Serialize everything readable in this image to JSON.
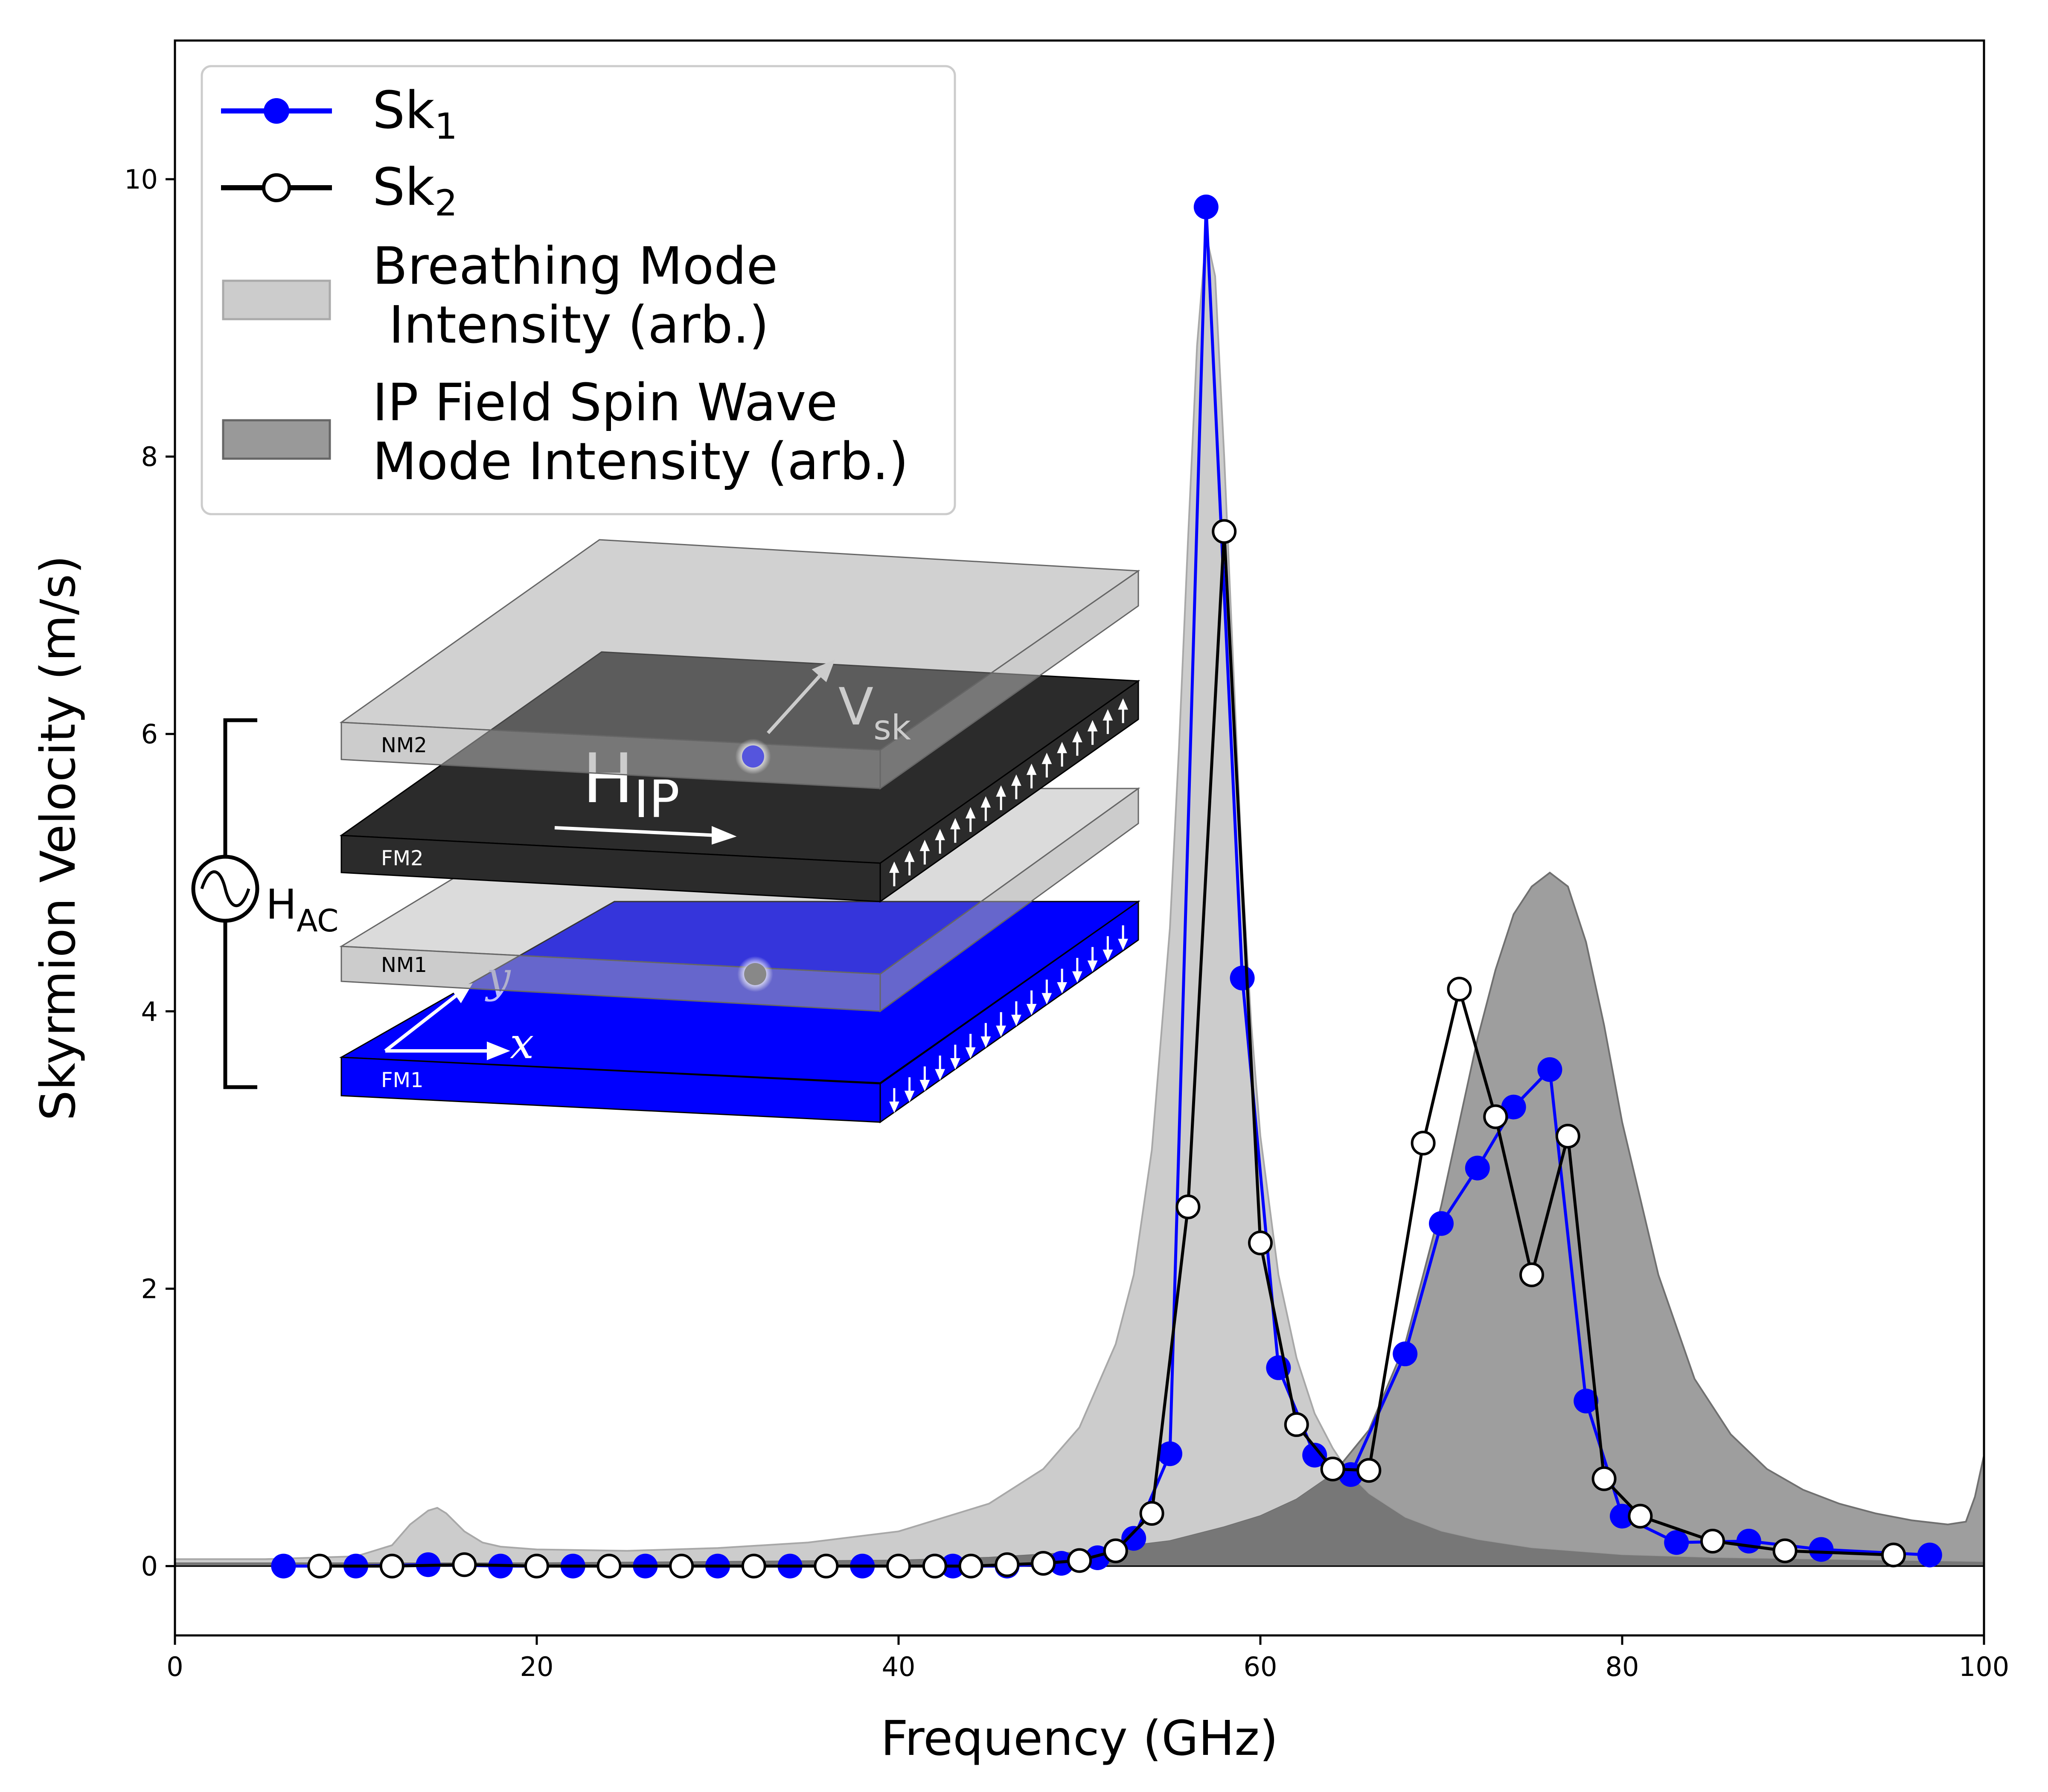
{
  "chart_data": {
    "type": "line",
    "xlabel": "Frequency (GHz)",
    "ylabel": "Skyrmion Velocity (m/s)",
    "xlim": [
      0,
      100
    ],
    "ylim": [
      -0.5,
      11
    ],
    "xticks": [
      0,
      20,
      40,
      60,
      80,
      100
    ],
    "yticks": [
      0,
      2,
      4,
      6,
      8,
      10
    ],
    "grid": false,
    "legend_position": "top-left",
    "legend": [
      {
        "label": "Sk",
        "sub": "1",
        "kind": "line-filled-marker",
        "color": "#0000ff"
      },
      {
        "label": "Sk",
        "sub": "2",
        "kind": "line-open-marker",
        "color": "#000000"
      },
      {
        "label_lines": [
          "Breathing Mode",
          " Intensity (arb.)"
        ],
        "kind": "area",
        "color": "#cccccc"
      },
      {
        "label_lines": [
          "IP Field Spin Wave",
          "Mode Intensity (arb.)"
        ],
        "kind": "area",
        "color": "#999999"
      }
    ],
    "series": [
      {
        "name": "Sk1",
        "color": "#0000ff",
        "marker": "filled",
        "x": [
          6,
          10,
          14,
          18,
          22,
          26,
          30,
          34,
          38,
          42,
          43,
          46,
          49,
          51,
          53,
          55,
          57,
          59,
          61,
          63,
          65,
          68,
          70,
          72,
          74,
          76,
          78,
          80,
          83,
          87,
          91,
          97
        ],
        "y": [
          0.0,
          0.0,
          0.01,
          0.0,
          0.0,
          0.0,
          0.0,
          0.0,
          0.0,
          0.0,
          0.0,
          0.0,
          0.02,
          0.06,
          0.2,
          0.81,
          9.8,
          4.24,
          1.43,
          0.8,
          0.66,
          1.53,
          2.47,
          2.87,
          3.31,
          3.58,
          1.19,
          0.36,
          0.17,
          0.18,
          0.12,
          0.08
        ]
      },
      {
        "name": "Sk2",
        "color": "#000000",
        "marker": "open",
        "x": [
          8,
          12,
          16,
          20,
          24,
          28,
          32,
          36,
          40,
          42,
          44,
          46,
          48,
          50,
          52,
          54,
          56,
          58,
          60,
          62,
          64,
          66,
          69,
          71,
          73,
          75,
          77,
          79,
          81,
          85,
          89,
          95
        ],
        "y": [
          0.0,
          0.0,
          0.01,
          0.0,
          0.0,
          0.0,
          0.0,
          0.0,
          0.0,
          0.0,
          0.0,
          0.01,
          0.02,
          0.04,
          0.11,
          0.38,
          2.59,
          7.46,
          2.33,
          1.02,
          0.7,
          0.69,
          3.05,
          4.16,
          3.24,
          2.1,
          3.1,
          0.63,
          0.36,
          0.18,
          0.11,
          0.08
        ]
      }
    ],
    "areas": [
      {
        "name": "Breathing Mode Intensity (arb.)",
        "color": "#cccccc",
        "x": [
          0,
          5,
          10,
          12,
          13,
          14,
          14.5,
          15,
          16,
          17,
          18,
          20,
          25,
          30,
          35,
          40,
          45,
          48,
          50,
          52,
          53,
          54,
          55,
          55.5,
          56,
          56.5,
          57,
          57.5,
          58,
          58.5,
          59,
          59.5,
          60,
          61,
          62,
          63,
          64,
          65,
          66,
          68,
          70,
          72,
          75,
          80,
          85,
          90,
          95,
          100
        ],
        "y": [
          0.05,
          0.05,
          0.07,
          0.15,
          0.3,
          0.4,
          0.42,
          0.38,
          0.25,
          0.17,
          0.14,
          0.12,
          0.11,
          0.13,
          0.17,
          0.25,
          0.45,
          0.7,
          1.0,
          1.6,
          2.1,
          3.0,
          4.6,
          5.9,
          7.4,
          8.8,
          9.6,
          9.3,
          8.0,
          6.5,
          5.0,
          3.9,
          3.1,
          2.1,
          1.5,
          1.1,
          0.85,
          0.65,
          0.52,
          0.35,
          0.25,
          0.19,
          0.13,
          0.08,
          0.06,
          0.05,
          0.04,
          0.03
        ]
      },
      {
        "name": "IP Field Spin Wave Mode Intensity (arb.)",
        "color": "#999999",
        "x": [
          0,
          10,
          20,
          30,
          40,
          45,
          50,
          55,
          58,
          60,
          62,
          64,
          66,
          68,
          70,
          71,
          72,
          73,
          74,
          75,
          76,
          77,
          78,
          79,
          80,
          82,
          84,
          86,
          88,
          90,
          92,
          94,
          96,
          98,
          99,
          99.5,
          100
        ],
        "y": [
          0.02,
          0.02,
          0.02,
          0.03,
          0.04,
          0.06,
          0.1,
          0.18,
          0.28,
          0.36,
          0.48,
          0.66,
          0.98,
          1.6,
          2.6,
          3.2,
          3.8,
          4.3,
          4.7,
          4.9,
          5.0,
          4.9,
          4.5,
          3.9,
          3.2,
          2.1,
          1.35,
          0.95,
          0.7,
          0.55,
          0.45,
          0.38,
          0.33,
          0.3,
          0.32,
          0.5,
          0.8
        ]
      }
    ]
  },
  "inset": {
    "layers": [
      "NM2",
      "FM2",
      "NM1",
      "FM1"
    ],
    "velocity_label": "V",
    "velocity_sub": "sk",
    "field_label": "H",
    "field_sub": "IP",
    "ac_label": "H",
    "ac_sub": "AC",
    "axis_x": "x",
    "axis_y": "y",
    "colors": {
      "fm1": "#0000ff",
      "fm2": "#222222",
      "nm": "#aaaaaa"
    }
  }
}
